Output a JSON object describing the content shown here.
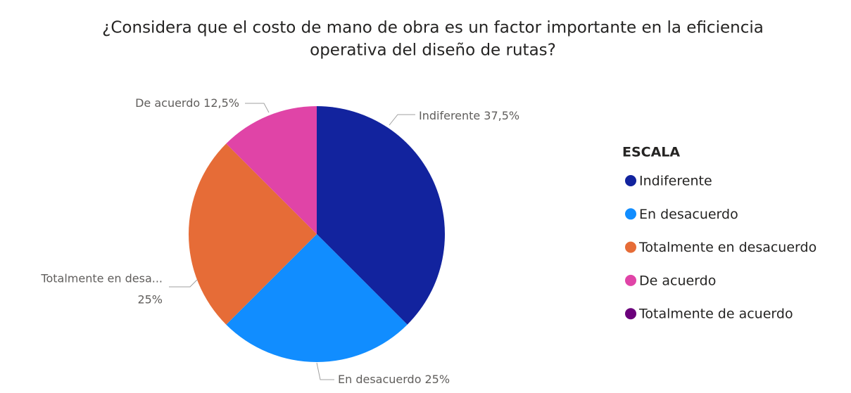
{
  "chart_data": {
    "type": "pie",
    "title": [
      "¿Considera que el costo de mano de obra es un factor importante en la eficiencia",
      "operativa del diseño de rutas?"
    ],
    "legend_title": "ESCALA",
    "categories": [
      "Indiferente",
      "En desacuerdo",
      "Totalmente en desacuerdo",
      "De acuerdo",
      "Totalmente de acuerdo"
    ],
    "values": [
      37.5,
      25,
      25,
      12.5,
      0
    ],
    "value_labels": [
      "37,5%",
      "25%",
      "25%",
      "12,5%",
      null
    ],
    "label_names": [
      "Indiferente",
      "En desacuerdo",
      "Totalmente en desa...",
      "De acuerdo",
      null
    ],
    "colors": [
      "#12239E",
      "#118DFF",
      "#E66C37",
      "#E044A7",
      "#6B007B"
    ],
    "legend": "right"
  }
}
